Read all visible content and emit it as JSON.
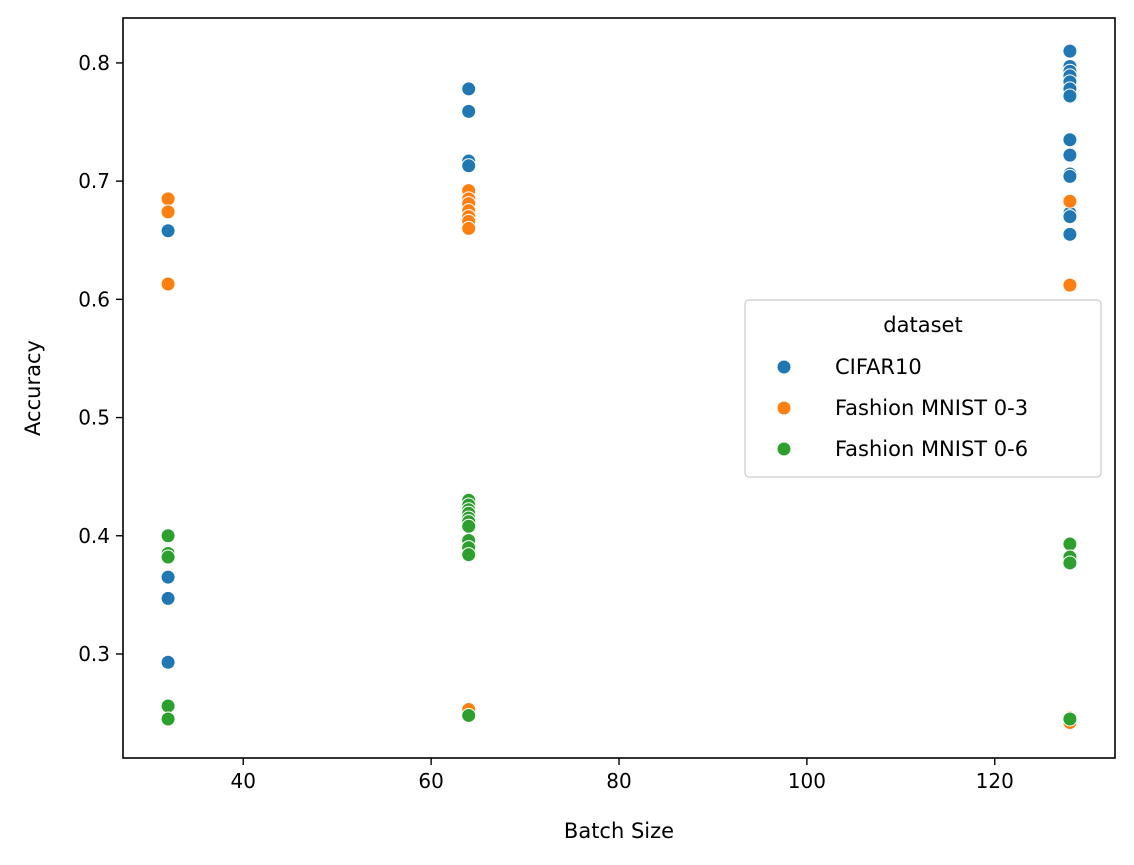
{
  "chart_data": {
    "type": "scatter",
    "xlabel": "Batch Size",
    "ylabel": "Accuracy",
    "xlim": [
      27.2,
      132.8
    ],
    "ylim": [
      0.212,
      0.838
    ],
    "xticks": [
      40,
      60,
      80,
      100,
      120
    ],
    "yticks": [
      0.3,
      0.4,
      0.5,
      0.6,
      0.7,
      0.8
    ],
    "grid": false,
    "legend": {
      "title": "dataset",
      "placement": "center-right"
    },
    "series": [
      {
        "name": "CIFAR10",
        "color": "#1f77b4",
        "points": [
          [
            32,
            0.658
          ],
          [
            32,
            0.365
          ],
          [
            32,
            0.347
          ],
          [
            32,
            0.293
          ],
          [
            64,
            0.778
          ],
          [
            64,
            0.759
          ],
          [
            64,
            0.717
          ],
          [
            64,
            0.713
          ],
          [
            128,
            0.81
          ],
          [
            128,
            0.797
          ],
          [
            128,
            0.793
          ],
          [
            128,
            0.789
          ],
          [
            128,
            0.784
          ],
          [
            128,
            0.778
          ],
          [
            128,
            0.772
          ],
          [
            128,
            0.735
          ],
          [
            128,
            0.722
          ],
          [
            128,
            0.706
          ],
          [
            128,
            0.704
          ],
          [
            128,
            0.673
          ],
          [
            128,
            0.67
          ],
          [
            128,
            0.655
          ]
        ]
      },
      {
        "name": "Fashion MNIST 0-3",
        "color": "#ff7f0e",
        "points": [
          [
            32,
            0.685
          ],
          [
            32,
            0.674
          ],
          [
            32,
            0.613
          ],
          [
            64,
            0.692
          ],
          [
            64,
            0.685
          ],
          [
            64,
            0.681
          ],
          [
            64,
            0.675
          ],
          [
            64,
            0.67
          ],
          [
            64,
            0.666
          ],
          [
            64,
            0.66
          ],
          [
            64,
            0.253
          ],
          [
            128,
            0.683
          ],
          [
            128,
            0.612
          ],
          [
            128,
            0.246
          ],
          [
            128,
            0.242
          ]
        ]
      },
      {
        "name": "Fashion MNIST 0-6",
        "color": "#2ca02c",
        "points": [
          [
            32,
            0.4
          ],
          [
            32,
            0.385
          ],
          [
            32,
            0.382
          ],
          [
            32,
            0.256
          ],
          [
            32,
            0.245
          ],
          [
            64,
            0.43
          ],
          [
            64,
            0.426
          ],
          [
            64,
            0.422
          ],
          [
            64,
            0.419
          ],
          [
            64,
            0.415
          ],
          [
            64,
            0.412
          ],
          [
            64,
            0.408
          ],
          [
            64,
            0.396
          ],
          [
            64,
            0.39
          ],
          [
            64,
            0.384
          ],
          [
            64,
            0.248
          ],
          [
            128,
            0.393
          ],
          [
            128,
            0.382
          ],
          [
            128,
            0.377
          ],
          [
            128,
            0.245
          ]
        ]
      }
    ]
  }
}
